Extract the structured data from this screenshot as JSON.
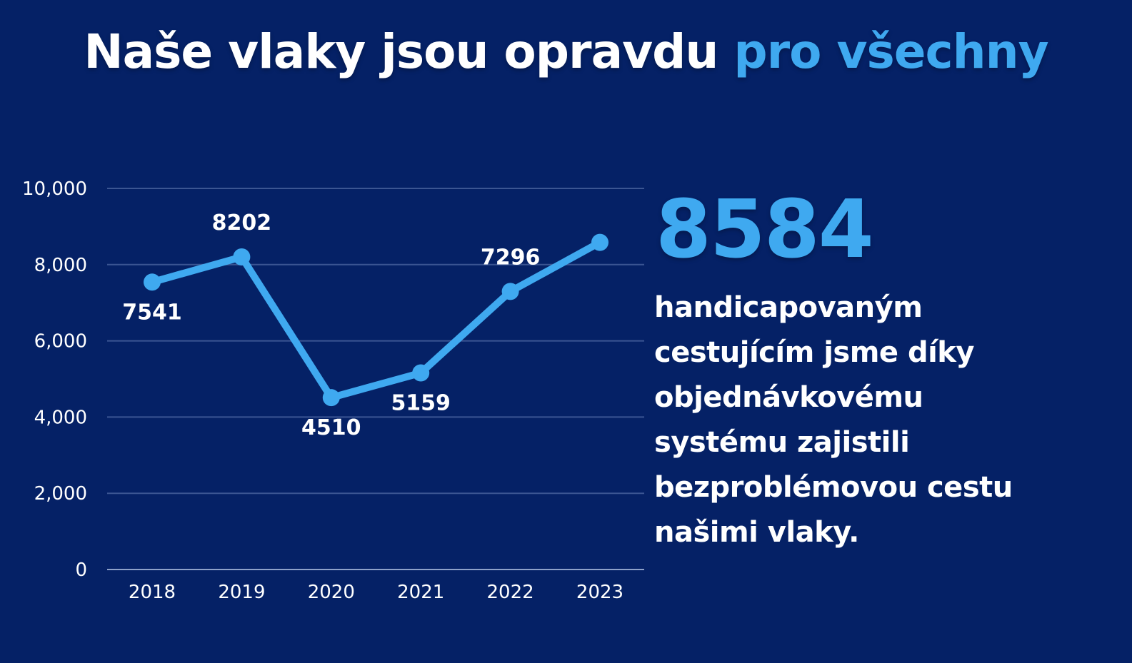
{
  "title": {
    "text_main": "Naše vlaky jsou opravdu",
    "text_accent": "pro všechny"
  },
  "colors": {
    "background": "#052166",
    "accent": "#3fa9f0",
    "text": "#ffffff",
    "gridline": "#3b5592",
    "axis_text": "#ffffff"
  },
  "highlight": {
    "number": "8584",
    "text": "handicapovaným\ncestujícím  jsme díky\nobjednávkovému\nsystému zajistili\nbezproblémovou cestu\nnašimi vlaky."
  },
  "chart_data": {
    "type": "line",
    "categories": [
      "2018",
      "2019",
      "2020",
      "2021",
      "2022",
      "2023"
    ],
    "values": [
      7541,
      8202,
      4510,
      5159,
      7296,
      8584
    ],
    "data_labels": [
      "7541",
      "8202",
      "4510",
      "5159",
      "7296",
      ""
    ],
    "label_positions": [
      "below",
      "above",
      "below",
      "below",
      "above",
      "none"
    ],
    "ylim": [
      0,
      10000
    ],
    "yticks": [
      0,
      2000,
      4000,
      6000,
      8000,
      10000
    ],
    "ytick_labels": [
      "0",
      "2,000",
      "4,000",
      "6,000",
      "8,000",
      "10,000"
    ],
    "grid": true,
    "title": "",
    "xlabel": "",
    "ylabel": ""
  }
}
